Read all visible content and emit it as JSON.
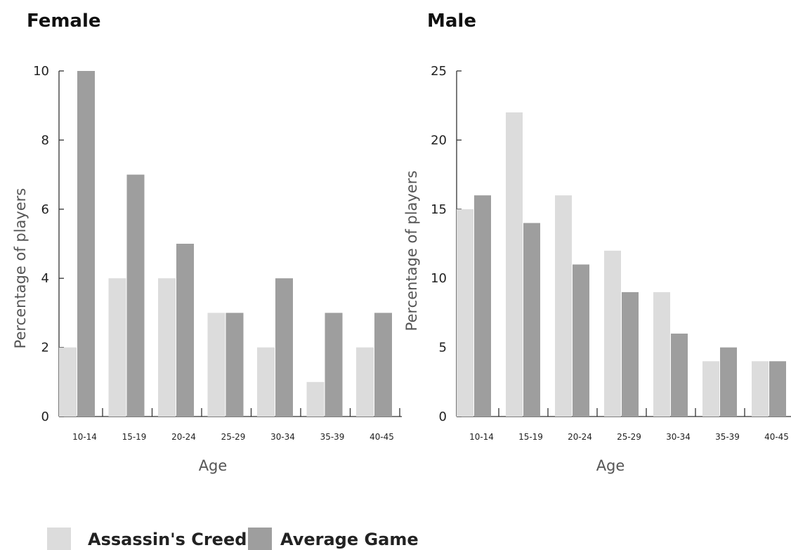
{
  "colors": {
    "assassins_creed": "#dcdcdc",
    "average_game": "#9e9e9e",
    "axis": "#333333"
  },
  "legend": {
    "items": [
      {
        "label": "Assassin's Creed",
        "color_key": "assassins_creed"
      },
      {
        "label": "Average Game",
        "color_key": "average_game"
      }
    ]
  },
  "chart_data": [
    {
      "type": "bar",
      "title": "Female",
      "xlabel": "Age",
      "ylabel": "Percentage of players",
      "categories": [
        "10-14",
        "15-19",
        "20-24",
        "25-29",
        "30-34",
        "35-39",
        "40-45"
      ],
      "ylim": [
        0,
        10
      ],
      "yticks": [
        0,
        2,
        4,
        6,
        8,
        10
      ],
      "series": [
        {
          "name": "Assassin's Creed",
          "values": [
            2,
            4,
            4,
            3,
            2,
            1,
            2
          ]
        },
        {
          "name": "Average Game",
          "values": [
            10,
            7,
            5,
            3,
            4,
            3,
            3
          ]
        }
      ]
    },
    {
      "type": "bar",
      "title": "Male",
      "xlabel": "Age",
      "ylabel": "Percentage of players",
      "categories": [
        "10-14",
        "15-19",
        "20-24",
        "25-29",
        "30-34",
        "35-39",
        "40-45"
      ],
      "ylim": [
        0,
        25
      ],
      "yticks": [
        0,
        5,
        10,
        15,
        20,
        25
      ],
      "series": [
        {
          "name": "Assassin's Creed",
          "values": [
            15,
            22,
            16,
            12,
            9,
            4,
            4
          ]
        },
        {
          "name": "Average Game",
          "values": [
            16,
            14,
            11,
            9,
            6,
            5,
            4
          ]
        }
      ]
    }
  ]
}
